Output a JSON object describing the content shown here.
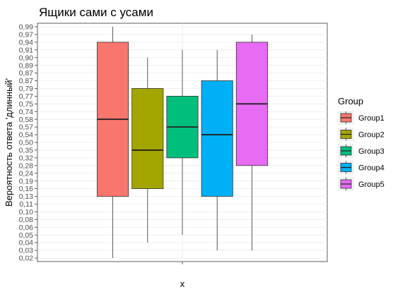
{
  "chart_data": {
    "type": "boxplot",
    "title": "Ящики сами с усами",
    "xlabel": "x",
    "ylabel": "Вероятность ответа 'длинный'",
    "y_ticks": [
      "0,02",
      "0,03",
      "0,04",
      "0,05",
      "0,06",
      "0,08",
      "0,10",
      "0,11",
      "0,13",
      "0,16",
      "0,19",
      "0,24",
      "0,28",
      "0,32",
      "0,35",
      "0,50",
      "0,54",
      "0,57",
      "0,58",
      "0,74",
      "0,75",
      "0,77",
      "0,79",
      "0,87",
      "0,87",
      "0,89",
      "0,90",
      "0,91",
      "0,94",
      "0,97",
      "0,99"
    ],
    "legend": {
      "title": "Group",
      "position": "right"
    },
    "grid": true,
    "series": [
      {
        "name": "Group1",
        "color": "#F8766D",
        "whisker_low_rank": 0,
        "q1_rank": 8,
        "median_rank": 18,
        "q3_rank": 28,
        "whisker_high_rank": 30
      },
      {
        "name": "Group2",
        "color": "#A3A500",
        "whisker_low_rank": 2,
        "q1_rank": 9,
        "median_rank": 14,
        "q3_rank": 22,
        "whisker_high_rank": 26
      },
      {
        "name": "Group3",
        "color": "#00BF7D",
        "whisker_low_rank": 3,
        "q1_rank": 13,
        "median_rank": 17,
        "q3_rank": 21,
        "whisker_high_rank": 27
      },
      {
        "name": "Group4",
        "color": "#00B0F6",
        "whisker_low_rank": 1,
        "q1_rank": 8,
        "median_rank": 16,
        "q3_rank": 23,
        "whisker_high_rank": 27
      },
      {
        "name": "Group5",
        "color": "#E76BF3",
        "whisker_low_rank": 1,
        "q1_rank": 12,
        "median_rank": 20,
        "q3_rank": 28,
        "whisker_high_rank": 29
      }
    ]
  }
}
